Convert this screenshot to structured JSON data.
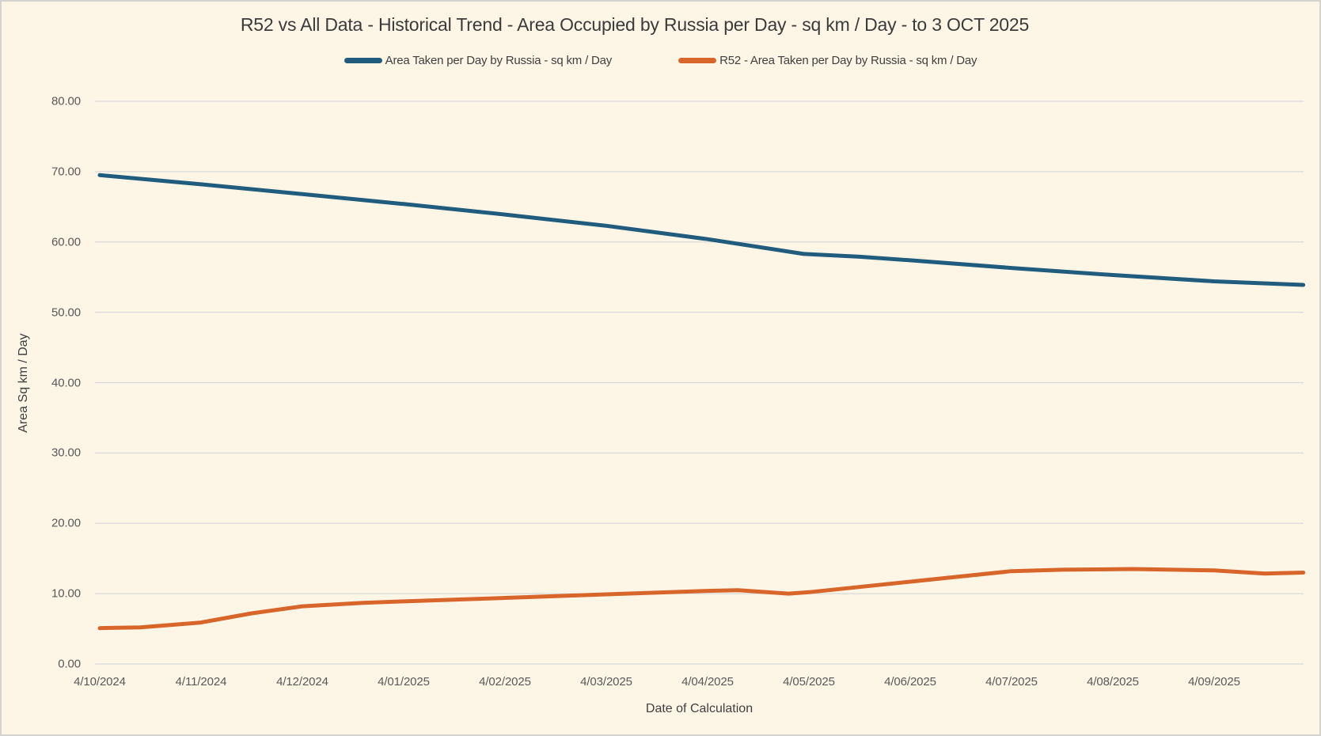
{
  "frame": {
    "background_color": "#fdf6e7",
    "border_color": "#d5d3d0",
    "gridline_color": "#d9d9d9"
  },
  "chart_data": {
    "type": "line",
    "title": "R52 vs All Data - Historical Trend - Area Occupied by Russia per Day - sq km / Day - to 3 OCT 2025",
    "xlabel": "Date of Calculation",
    "ylabel": "Area Sq km / Day",
    "ylim": [
      0,
      80
    ],
    "grid": true,
    "legend_position": "top-center",
    "y_ticks": [
      {
        "value": 80,
        "label": "80.00"
      },
      {
        "value": 70,
        "label": "70.00"
      },
      {
        "value": 60,
        "label": "60.00"
      },
      {
        "value": 50,
        "label": "50.00"
      },
      {
        "value": 40,
        "label": "40.00"
      },
      {
        "value": 30,
        "label": "30.00"
      },
      {
        "value": 20,
        "label": "20.00"
      },
      {
        "value": 10,
        "label": "10.00"
      },
      {
        "value": 0,
        "label": "0.00"
      }
    ],
    "x_tick_labels": [
      "4/10/2024",
      "4/11/2024",
      "4/12/2024",
      "4/01/2025",
      "4/02/2025",
      "4/03/2025",
      "4/04/2025",
      "4/05/2025",
      "4/06/2025",
      "4/07/2025",
      "4/08/2025",
      "4/09/2025"
    ],
    "x_unit": "months_since_4/10/2024",
    "x_range": [
      0,
      11.88
    ],
    "series": [
      {
        "name": "Area Taken per Day by Russia - sq km / Day",
        "color": "#1f5c7e",
        "points": [
          [
            0,
            69.5
          ],
          [
            1,
            68.2
          ],
          [
            2,
            66.8
          ],
          [
            3,
            65.4
          ],
          [
            4,
            63.9
          ],
          [
            5,
            62.3
          ],
          [
            6,
            60.4
          ],
          [
            6.95,
            58.3
          ],
          [
            7.5,
            57.9
          ],
          [
            8,
            57.4
          ],
          [
            9,
            56.3
          ],
          [
            10,
            55.3
          ],
          [
            11,
            54.4
          ],
          [
            11.88,
            53.9
          ]
        ]
      },
      {
        "name": "R52 - Area Taken per Day by Russia - sq km / Day",
        "color": "#d8652a",
        "points": [
          [
            0,
            5.1
          ],
          [
            0.4,
            5.2
          ],
          [
            1,
            5.9
          ],
          [
            1.5,
            7.2
          ],
          [
            2,
            8.2
          ],
          [
            2.6,
            8.7
          ],
          [
            3,
            8.9
          ],
          [
            4,
            9.4
          ],
          [
            5,
            9.9
          ],
          [
            6,
            10.4
          ],
          [
            6.3,
            10.5
          ],
          [
            6.8,
            10.0
          ],
          [
            7,
            10.2
          ],
          [
            8,
            11.7
          ],
          [
            9,
            13.2
          ],
          [
            9.5,
            13.4
          ],
          [
            10.2,
            13.5
          ],
          [
            11,
            13.3
          ],
          [
            11.5,
            12.85
          ],
          [
            11.88,
            13.0
          ]
        ]
      }
    ]
  }
}
